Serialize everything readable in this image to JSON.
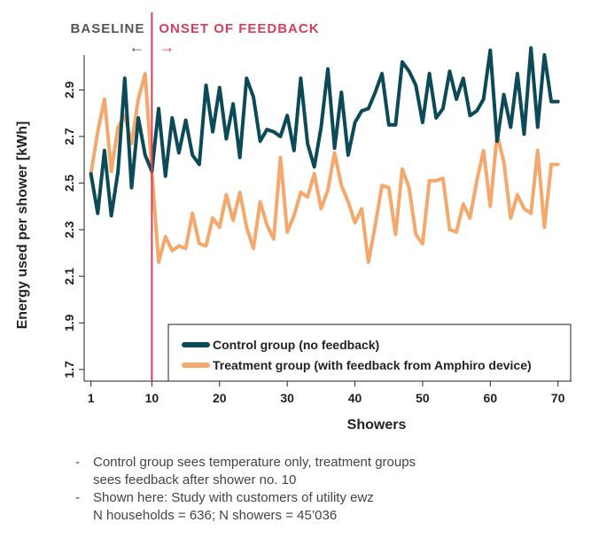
{
  "chart_data": {
    "type": "line",
    "xlabel": "Showers",
    "ylabel": "Energy used per shower [kWh]",
    "xlim": [
      0,
      72
    ],
    "ylim": [
      1.65,
      3.05
    ],
    "x_ticks": [
      "1",
      "10",
      "20",
      "30",
      "40",
      "50",
      "60",
      "70"
    ],
    "x_tick_values": [
      1,
      10,
      20,
      30,
      40,
      50,
      60,
      70
    ],
    "y_ticks": [
      "1.7",
      "1.9",
      "2.1",
      "2.3",
      "2.5",
      "2.7",
      "2.9"
    ],
    "y_tick_values": [
      1.7,
      1.9,
      2.1,
      2.3,
      2.5,
      2.7,
      2.9
    ],
    "x": [
      1,
      2,
      3,
      4,
      5,
      6,
      7,
      8,
      9,
      10,
      11,
      12,
      13,
      14,
      15,
      16,
      17,
      18,
      19,
      20,
      21,
      22,
      23,
      24,
      25,
      26,
      27,
      28,
      29,
      30,
      31,
      32,
      33,
      34,
      35,
      36,
      37,
      38,
      39,
      40,
      41,
      42,
      43,
      44,
      45,
      46,
      47,
      48,
      49,
      50,
      51,
      52,
      53,
      54,
      55,
      56,
      57,
      58,
      59,
      60,
      61,
      62,
      63,
      64,
      65,
      66,
      67,
      68,
      69,
      70
    ],
    "series": [
      {
        "name": "Control group (no feedback)",
        "color": "#0d4a57",
        "values": [
          2.54,
          2.37,
          2.64,
          2.36,
          2.55,
          2.95,
          2.48,
          2.78,
          2.62,
          2.55,
          2.82,
          2.53,
          2.78,
          2.63,
          2.77,
          2.62,
          2.58,
          2.92,
          2.72,
          2.91,
          2.69,
          2.84,
          2.61,
          2.95,
          2.87,
          2.68,
          2.73,
          2.72,
          2.7,
          2.79,
          2.64,
          2.95,
          2.67,
          2.57,
          2.74,
          2.99,
          2.65,
          2.89,
          2.62,
          2.76,
          2.81,
          2.82,
          2.89,
          2.97,
          2.75,
          2.75,
          3.02,
          2.98,
          2.92,
          2.76,
          2.97,
          2.78,
          2.82,
          2.98,
          2.86,
          2.95,
          2.79,
          2.81,
          2.86,
          3.07,
          2.68,
          2.88,
          2.74,
          2.97,
          2.71,
          3.08,
          2.74,
          3.05,
          2.85,
          2.85
        ]
      },
      {
        "name": "Treatment group (with feedback from Amphiro device)",
        "color": "#f5a86b",
        "values": [
          2.54,
          2.72,
          2.86,
          2.55,
          2.74,
          2.79,
          2.67,
          2.86,
          2.97,
          2.55,
          2.16,
          2.27,
          2.21,
          2.23,
          2.22,
          2.37,
          2.24,
          2.23,
          2.35,
          2.31,
          2.45,
          2.34,
          2.46,
          2.31,
          2.22,
          2.42,
          2.32,
          2.26,
          2.61,
          2.29,
          2.36,
          2.46,
          2.44,
          2.54,
          2.39,
          2.47,
          2.63,
          2.49,
          2.42,
          2.33,
          2.39,
          2.16,
          2.32,
          2.49,
          2.48,
          2.28,
          2.56,
          2.48,
          2.28,
          2.24,
          2.51,
          2.51,
          2.52,
          2.3,
          2.29,
          2.41,
          2.35,
          2.51,
          2.64,
          2.4,
          2.71,
          2.59,
          2.35,
          2.45,
          2.39,
          2.37,
          2.64,
          2.31,
          2.58,
          2.58
        ]
      }
    ],
    "annotations": {
      "baseline_label": "BASELINE",
      "baseline_arrow": "←",
      "onset_label": "ONSET OF FEEDBACK",
      "onset_arrow": "→",
      "onset_x": 10,
      "onset_color": "#d63e5e",
      "baseline_color": "#555555"
    },
    "legend_position": "bottom-right"
  },
  "notes": [
    [
      "Control group sees temperature only, treatment groups",
      "sees feedback after shower no. 10"
    ],
    [
      "Shown here: Study with customers of utility ewz",
      "N households = 636; N showers = 45’036"
    ]
  ],
  "note_bullet": "-"
}
